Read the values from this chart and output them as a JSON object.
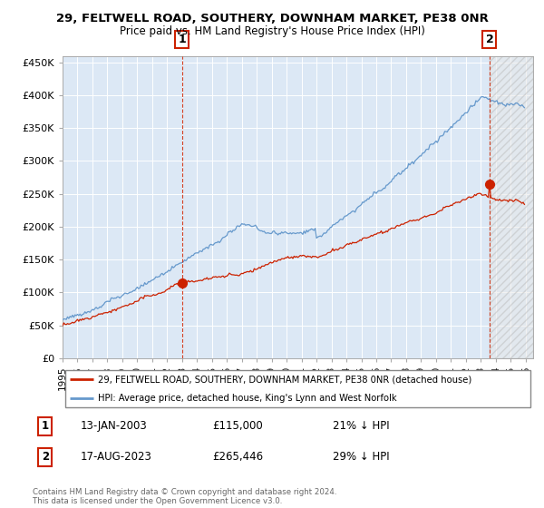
{
  "title": "29, FELTWELL ROAD, SOUTHERY, DOWNHAM MARKET, PE38 0NR",
  "subtitle": "Price paid vs. HM Land Registry's House Price Index (HPI)",
  "legend_line1": "29, FELTWELL ROAD, SOUTHERY, DOWNHAM MARKET, PE38 0NR (detached house)",
  "legend_line2": "HPI: Average price, detached house, King's Lynn and West Norfolk",
  "annotation1_date": "13-JAN-2003",
  "annotation1_price": "£115,000",
  "annotation1_hpi": "21% ↓ HPI",
  "annotation2_date": "17-AUG-2023",
  "annotation2_price": "£265,446",
  "annotation2_hpi": "29% ↓ HPI",
  "footer": "Contains HM Land Registry data © Crown copyright and database right 2024.\nThis data is licensed under the Open Government Licence v3.0.",
  "line_color_red": "#cc2200",
  "line_color_blue": "#6699cc",
  "bg_color": "#dce8f5",
  "grid_color": "#ffffff",
  "hatch_color": "#cccccc",
  "ylim": [
    0,
    460000
  ],
  "xmin": 1995.0,
  "xmax": 2026.5
}
